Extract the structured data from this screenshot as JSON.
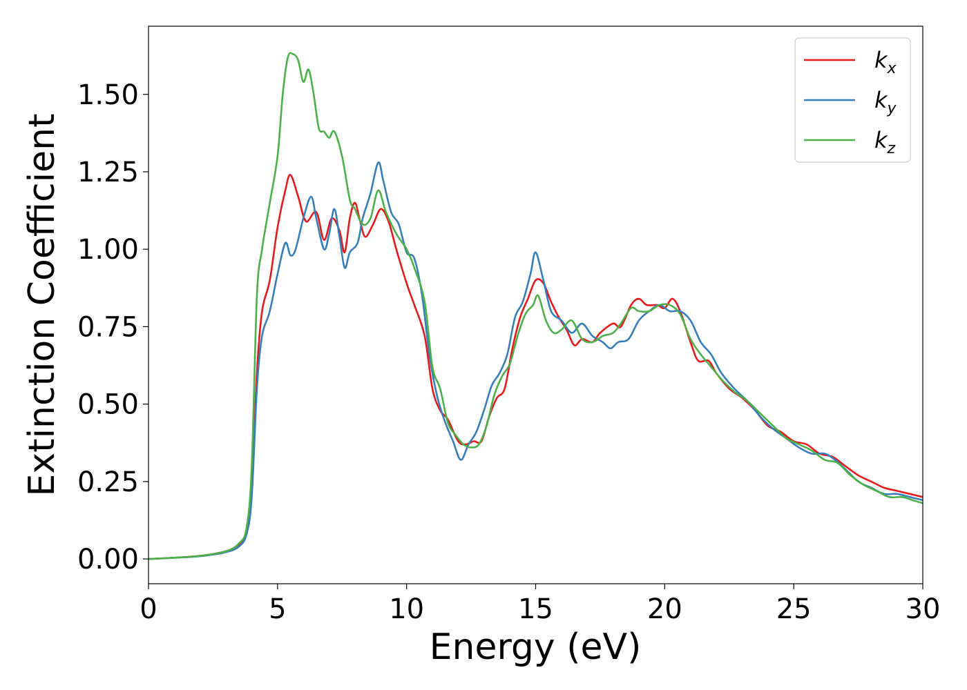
{
  "chart_data": {
    "type": "line",
    "title": "",
    "xlabel": "Energy (eV)",
    "ylabel": "Extinction Coefficient",
    "xlim": [
      0,
      30
    ],
    "ylim": [
      -0.08,
      1.72
    ],
    "xticks": [
      0,
      5,
      10,
      15,
      20,
      25,
      30
    ],
    "xtick_labels": [
      "0",
      "5",
      "10",
      "15",
      "20",
      "25",
      "30"
    ],
    "yticks": [
      0,
      0.25,
      0.5,
      0.75,
      1.0,
      1.25,
      1.5
    ],
    "ytick_labels": [
      "0.00",
      "0.25",
      "0.50",
      "0.75",
      "1.00",
      "1.25",
      "1.50"
    ],
    "grid": false,
    "legend_position": "top-right",
    "series": [
      {
        "name": "k_x",
        "label_main": "k",
        "label_sub": "x",
        "color": "#e41a1c",
        "points": [
          [
            0,
            0
          ],
          [
            1,
            0.004
          ],
          [
            2,
            0.01
          ],
          [
            3,
            0.025
          ],
          [
            3.5,
            0.045
          ],
          [
            3.8,
            0.09
          ],
          [
            4.0,
            0.22
          ],
          [
            4.2,
            0.6
          ],
          [
            4.4,
            0.8
          ],
          [
            4.7,
            0.9
          ],
          [
            5.0,
            1.07
          ],
          [
            5.3,
            1.19
          ],
          [
            5.5,
            1.24
          ],
          [
            5.8,
            1.17
          ],
          [
            6.1,
            1.09
          ],
          [
            6.5,
            1.12
          ],
          [
            6.8,
            1.03
          ],
          [
            7.1,
            1.1
          ],
          [
            7.4,
            1.06
          ],
          [
            7.6,
            0.99
          ],
          [
            7.8,
            1.1
          ],
          [
            8.0,
            1.15
          ],
          [
            8.2,
            1.09
          ],
          [
            8.4,
            1.04
          ],
          [
            8.7,
            1.08
          ],
          [
            9.0,
            1.13
          ],
          [
            9.3,
            1.09
          ],
          [
            9.6,
            1.0
          ],
          [
            10.0,
            0.89
          ],
          [
            10.3,
            0.82
          ],
          [
            10.7,
            0.72
          ],
          [
            11.0,
            0.55
          ],
          [
            11.3,
            0.48
          ],
          [
            11.6,
            0.45
          ],
          [
            12.0,
            0.38
          ],
          [
            12.3,
            0.37
          ],
          [
            12.6,
            0.38
          ],
          [
            12.9,
            0.38
          ],
          [
            13.2,
            0.46
          ],
          [
            13.5,
            0.52
          ],
          [
            13.8,
            0.55
          ],
          [
            14.1,
            0.68
          ],
          [
            14.4,
            0.78
          ],
          [
            14.7,
            0.84
          ],
          [
            15.0,
            0.9
          ],
          [
            15.3,
            0.89
          ],
          [
            15.6,
            0.83
          ],
          [
            15.9,
            0.78
          ],
          [
            16.2,
            0.74
          ],
          [
            16.5,
            0.69
          ],
          [
            16.8,
            0.71
          ],
          [
            17.2,
            0.7
          ],
          [
            17.5,
            0.73
          ],
          [
            18.0,
            0.76
          ],
          [
            18.3,
            0.75
          ],
          [
            18.7,
            0.82
          ],
          [
            19.0,
            0.84
          ],
          [
            19.3,
            0.82
          ],
          [
            19.7,
            0.82
          ],
          [
            20.0,
            0.81
          ],
          [
            20.3,
            0.84
          ],
          [
            20.6,
            0.8
          ],
          [
            21.0,
            0.7
          ],
          [
            21.3,
            0.64
          ],
          [
            21.7,
            0.64
          ],
          [
            22.0,
            0.6
          ],
          [
            22.5,
            0.55
          ],
          [
            23.0,
            0.52
          ],
          [
            23.5,
            0.48
          ],
          [
            24.0,
            0.43
          ],
          [
            24.5,
            0.41
          ],
          [
            25.0,
            0.38
          ],
          [
            25.5,
            0.37
          ],
          [
            26.0,
            0.34
          ],
          [
            26.5,
            0.33
          ],
          [
            27.0,
            0.3
          ],
          [
            27.5,
            0.27
          ],
          [
            28.0,
            0.25
          ],
          [
            28.5,
            0.23
          ],
          [
            29.0,
            0.22
          ],
          [
            29.5,
            0.21
          ],
          [
            30.0,
            0.2
          ]
        ]
      },
      {
        "name": "k_y",
        "label_main": "k",
        "label_sub": "y",
        "color": "#377eb8",
        "points": [
          [
            0,
            0
          ],
          [
            1,
            0.004
          ],
          [
            2,
            0.009
          ],
          [
            3,
            0.022
          ],
          [
            3.5,
            0.04
          ],
          [
            3.8,
            0.08
          ],
          [
            4.0,
            0.2
          ],
          [
            4.2,
            0.55
          ],
          [
            4.4,
            0.72
          ],
          [
            4.7,
            0.8
          ],
          [
            5.0,
            0.92
          ],
          [
            5.3,
            1.02
          ],
          [
            5.5,
            0.98
          ],
          [
            5.7,
            1.0
          ],
          [
            6.0,
            1.1
          ],
          [
            6.3,
            1.17
          ],
          [
            6.5,
            1.1
          ],
          [
            6.8,
            1.0
          ],
          [
            7.0,
            1.05
          ],
          [
            7.2,
            1.13
          ],
          [
            7.4,
            1.04
          ],
          [
            7.6,
            0.94
          ],
          [
            7.8,
            0.99
          ],
          [
            8.1,
            1.02
          ],
          [
            8.3,
            1.1
          ],
          [
            8.6,
            1.18
          ],
          [
            8.9,
            1.28
          ],
          [
            9.1,
            1.22
          ],
          [
            9.4,
            1.12
          ],
          [
            9.7,
            1.08
          ],
          [
            10.0,
            0.99
          ],
          [
            10.3,
            0.97
          ],
          [
            10.6,
            0.85
          ],
          [
            10.9,
            0.65
          ],
          [
            11.2,
            0.52
          ],
          [
            11.5,
            0.44
          ],
          [
            11.8,
            0.38
          ],
          [
            12.1,
            0.32
          ],
          [
            12.4,
            0.37
          ],
          [
            12.7,
            0.41
          ],
          [
            13.0,
            0.48
          ],
          [
            13.3,
            0.56
          ],
          [
            13.6,
            0.6
          ],
          [
            13.9,
            0.66
          ],
          [
            14.2,
            0.78
          ],
          [
            14.5,
            0.83
          ],
          [
            14.8,
            0.92
          ],
          [
            15.0,
            0.99
          ],
          [
            15.3,
            0.9
          ],
          [
            15.6,
            0.8
          ],
          [
            16.0,
            0.77
          ],
          [
            16.4,
            0.73
          ],
          [
            16.8,
            0.76
          ],
          [
            17.2,
            0.72
          ],
          [
            17.6,
            0.7
          ],
          [
            17.9,
            0.68
          ],
          [
            18.2,
            0.7
          ],
          [
            18.6,
            0.71
          ],
          [
            19.0,
            0.77
          ],
          [
            19.4,
            0.8
          ],
          [
            19.8,
            0.82
          ],
          [
            20.2,
            0.8
          ],
          [
            20.6,
            0.8
          ],
          [
            21.0,
            0.77
          ],
          [
            21.4,
            0.7
          ],
          [
            21.8,
            0.66
          ],
          [
            22.2,
            0.6
          ],
          [
            22.7,
            0.55
          ],
          [
            23.2,
            0.51
          ],
          [
            23.7,
            0.46
          ],
          [
            24.2,
            0.42
          ],
          [
            24.7,
            0.39
          ],
          [
            25.2,
            0.36
          ],
          [
            25.7,
            0.34
          ],
          [
            26.2,
            0.34
          ],
          [
            26.6,
            0.32
          ],
          [
            27.0,
            0.29
          ],
          [
            27.5,
            0.25
          ],
          [
            28.0,
            0.23
          ],
          [
            28.5,
            0.21
          ],
          [
            29.0,
            0.21
          ],
          [
            29.5,
            0.2
          ],
          [
            30.0,
            0.19
          ]
        ]
      },
      {
        "name": "k_z",
        "label_main": "k",
        "label_sub": "z",
        "color": "#4daf4a",
        "points": [
          [
            0,
            0
          ],
          [
            1,
            0.004
          ],
          [
            2,
            0.01
          ],
          [
            3,
            0.025
          ],
          [
            3.5,
            0.05
          ],
          [
            3.8,
            0.1
          ],
          [
            4.0,
            0.3
          ],
          [
            4.2,
            0.85
          ],
          [
            4.4,
            1.0
          ],
          [
            4.7,
            1.15
          ],
          [
            5.0,
            1.3
          ],
          [
            5.2,
            1.5
          ],
          [
            5.4,
            1.62
          ],
          [
            5.6,
            1.63
          ],
          [
            5.8,
            1.61
          ],
          [
            6.0,
            1.54
          ],
          [
            6.2,
            1.58
          ],
          [
            6.4,
            1.5
          ],
          [
            6.6,
            1.39
          ],
          [
            6.8,
            1.38
          ],
          [
            7.0,
            1.36
          ],
          [
            7.2,
            1.38
          ],
          [
            7.5,
            1.3
          ],
          [
            7.8,
            1.16
          ],
          [
            8.0,
            1.13
          ],
          [
            8.3,
            1.08
          ],
          [
            8.6,
            1.1
          ],
          [
            8.9,
            1.19
          ],
          [
            9.2,
            1.12
          ],
          [
            9.6,
            1.05
          ],
          [
            10.0,
            1.0
          ],
          [
            10.3,
            0.94
          ],
          [
            10.7,
            0.83
          ],
          [
            11.0,
            0.62
          ],
          [
            11.3,
            0.55
          ],
          [
            11.6,
            0.44
          ],
          [
            11.9,
            0.4
          ],
          [
            12.2,
            0.37
          ],
          [
            12.5,
            0.36
          ],
          [
            12.8,
            0.37
          ],
          [
            13.1,
            0.43
          ],
          [
            13.4,
            0.53
          ],
          [
            13.7,
            0.59
          ],
          [
            14.0,
            0.63
          ],
          [
            14.3,
            0.72
          ],
          [
            14.6,
            0.79
          ],
          [
            14.9,
            0.82
          ],
          [
            15.1,
            0.85
          ],
          [
            15.4,
            0.77
          ],
          [
            15.7,
            0.73
          ],
          [
            16.0,
            0.74
          ],
          [
            16.4,
            0.77
          ],
          [
            16.8,
            0.71
          ],
          [
            17.2,
            0.7
          ],
          [
            17.6,
            0.72
          ],
          [
            18.0,
            0.73
          ],
          [
            18.3,
            0.76
          ],
          [
            18.7,
            0.81
          ],
          [
            19.0,
            0.8
          ],
          [
            19.4,
            0.8
          ],
          [
            19.8,
            0.82
          ],
          [
            20.2,
            0.82
          ],
          [
            20.6,
            0.79
          ],
          [
            21.0,
            0.71
          ],
          [
            21.4,
            0.66
          ],
          [
            21.8,
            0.62
          ],
          [
            22.2,
            0.58
          ],
          [
            22.7,
            0.54
          ],
          [
            23.2,
            0.51
          ],
          [
            23.7,
            0.47
          ],
          [
            24.2,
            0.43
          ],
          [
            24.7,
            0.39
          ],
          [
            25.2,
            0.37
          ],
          [
            25.7,
            0.35
          ],
          [
            26.2,
            0.32
          ],
          [
            26.7,
            0.31
          ],
          [
            27.2,
            0.27
          ],
          [
            27.7,
            0.24
          ],
          [
            28.2,
            0.22
          ],
          [
            28.7,
            0.2
          ],
          [
            29.2,
            0.2
          ],
          [
            29.6,
            0.19
          ],
          [
            30.0,
            0.18
          ]
        ]
      }
    ]
  }
}
